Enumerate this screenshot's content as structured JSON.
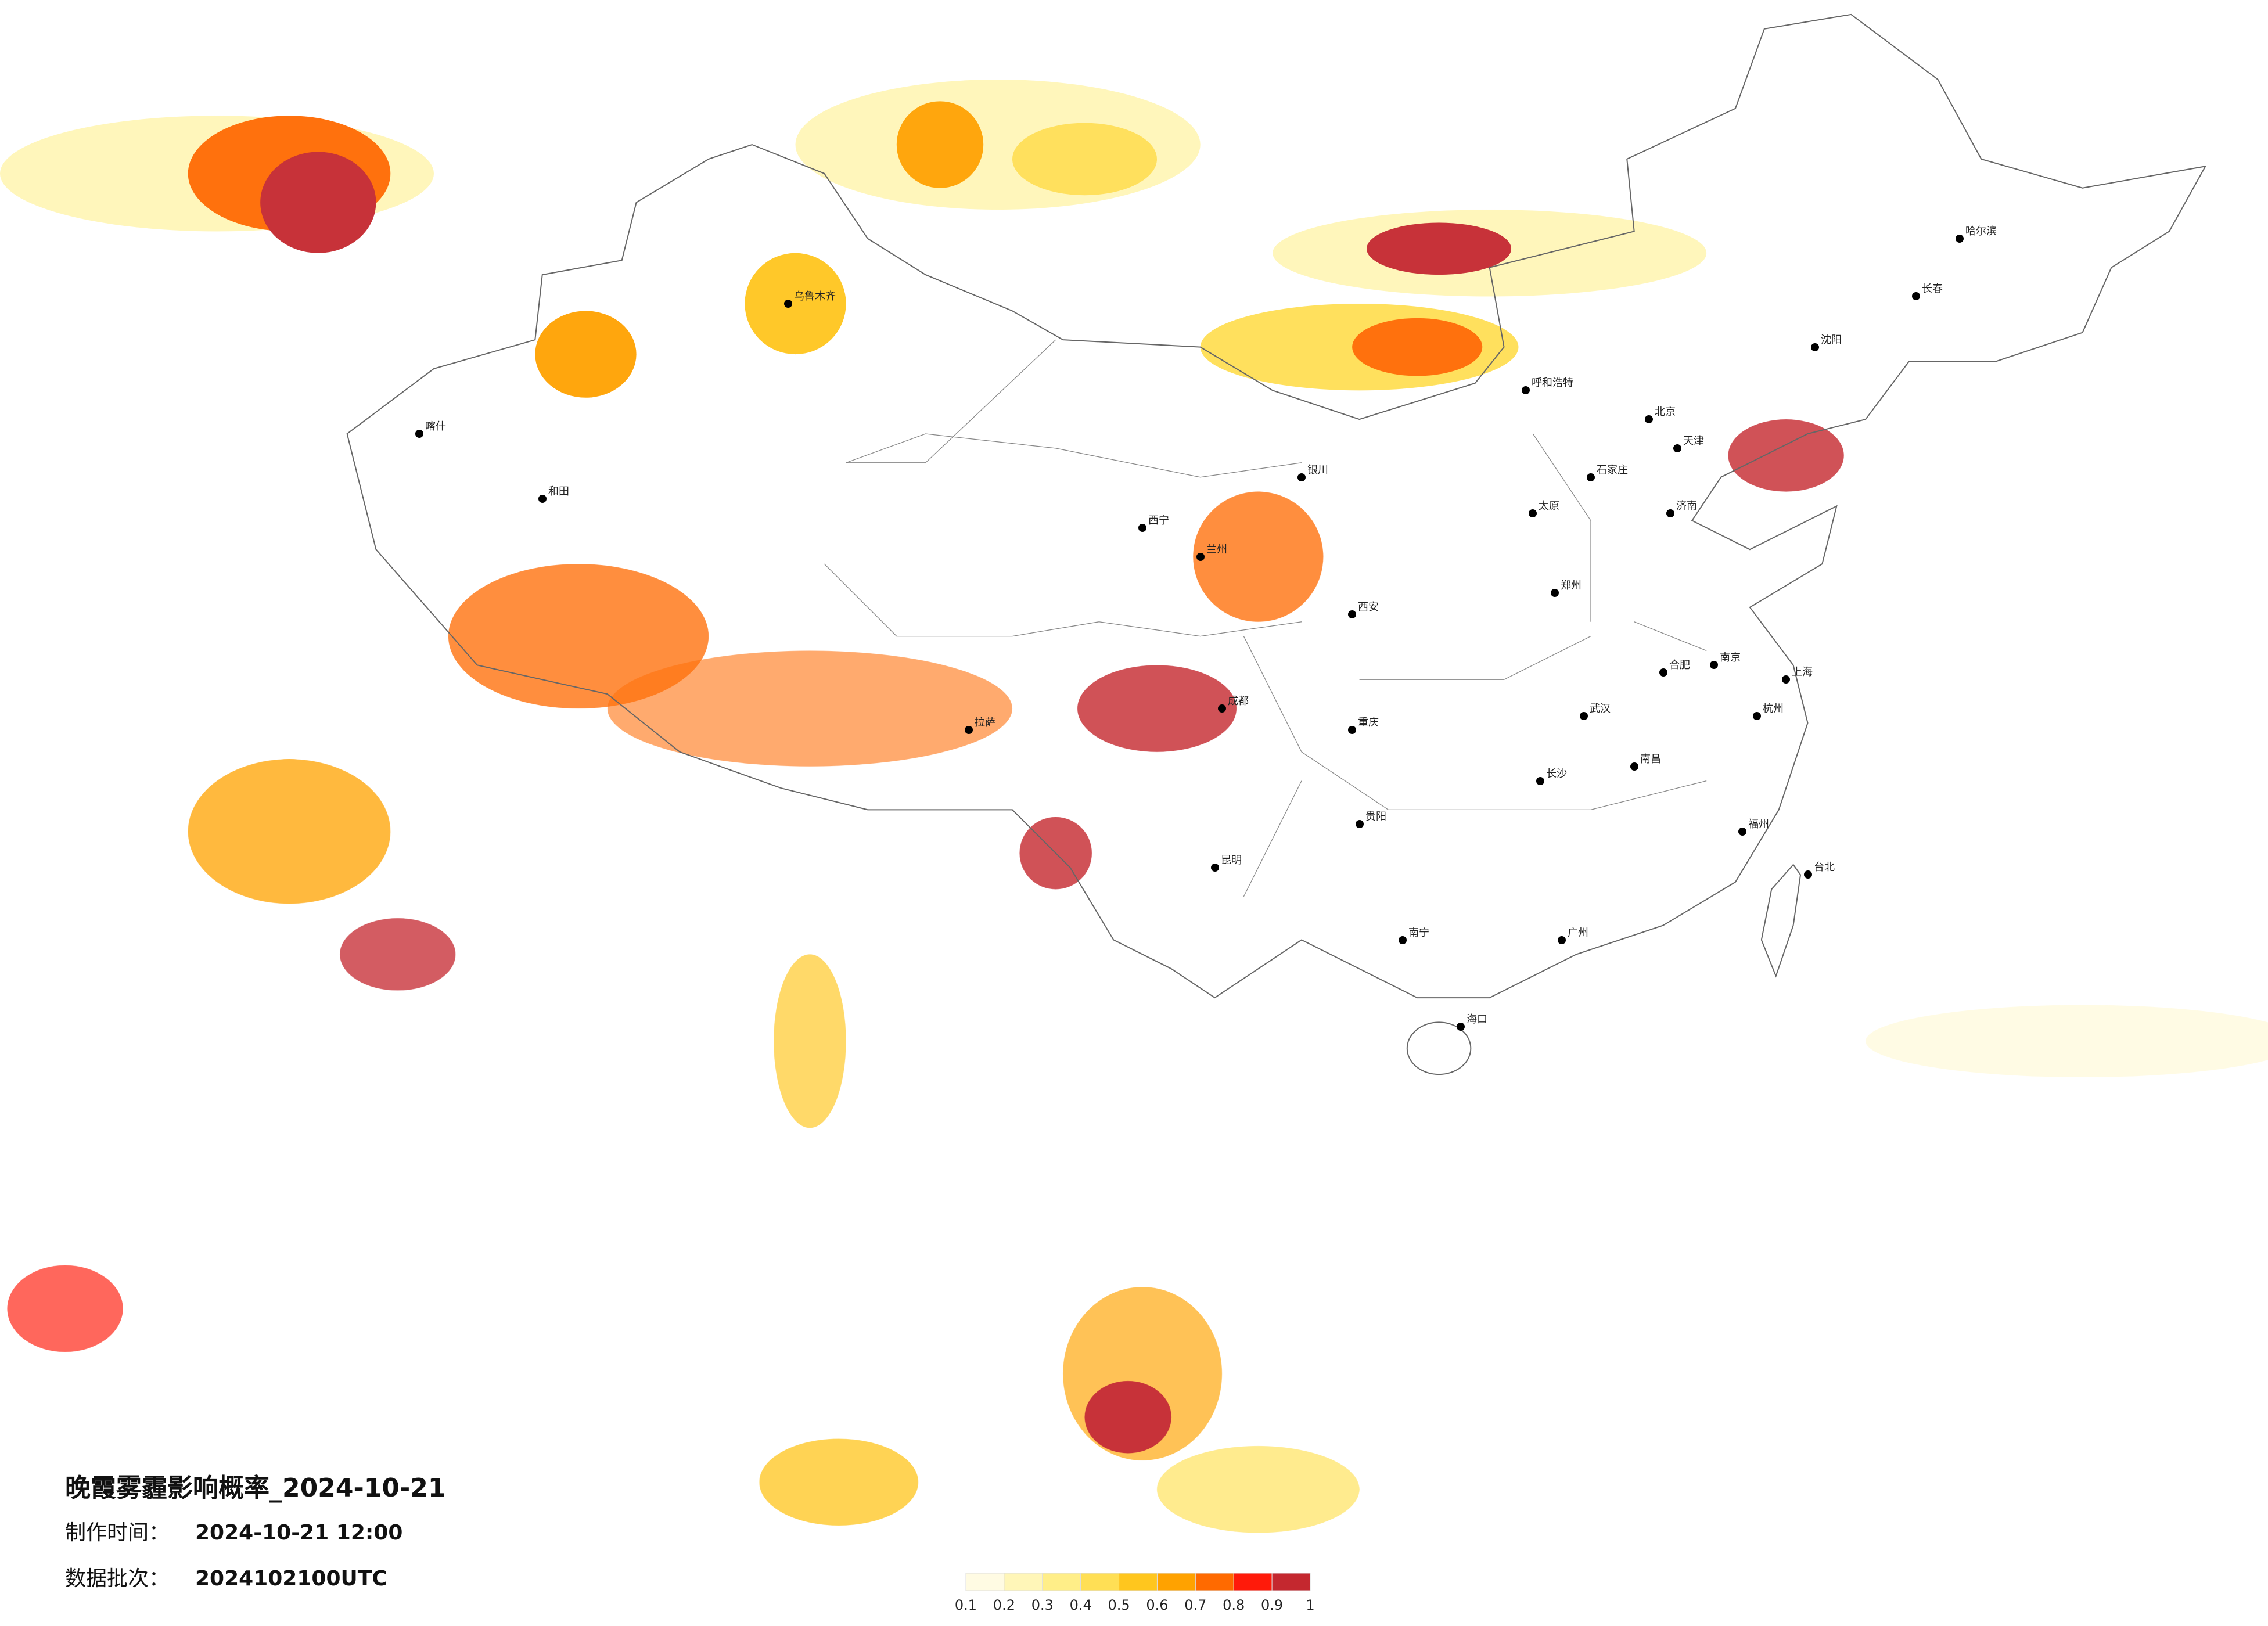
{
  "header": {
    "title": "晚霞雾霾影响概率_2024-10-21",
    "made_label": "制作时间：",
    "made_value": "2024-10-21 12:00",
    "batch_label": "数据批次：",
    "batch_value": "2024102100UTC"
  },
  "legend": {
    "colors": [
      "#fffbe3",
      "#fff6b8",
      "#ffee88",
      "#ffdf55",
      "#ffc61e",
      "#ffa200",
      "#ff6a00",
      "#ff1a0a",
      "#c4282f"
    ],
    "ticks": [
      0.1,
      0.2,
      0.3,
      0.4,
      0.5,
      0.6,
      0.7,
      0.8,
      0.9,
      1
    ]
  },
  "cities": [
    "北京",
    "天津",
    "上海",
    "广州",
    "重庆",
    "成都",
    "西安",
    "武汉",
    "长沙",
    "郑州",
    "济南",
    "沈阳",
    "长春",
    "哈尔滨",
    "呼和浩特",
    "兰州",
    "西宁",
    "拉萨",
    "乌鲁木齐",
    "昆明",
    "贵阳",
    "南宁",
    "海口",
    "福州",
    "台北",
    "南京",
    "杭州",
    "合肥",
    "南昌",
    "太原",
    "石家庄",
    "银川",
    "和田",
    "喀什"
  ]
}
